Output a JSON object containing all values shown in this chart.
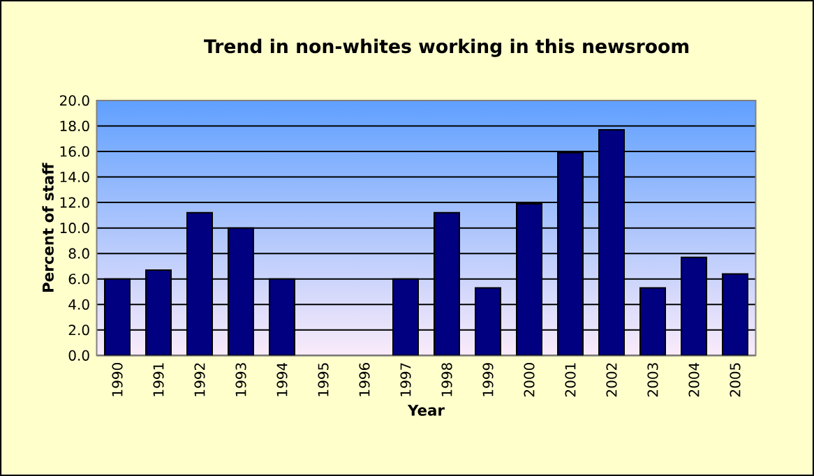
{
  "chart_data": {
    "type": "bar",
    "title": "Trend in non-whites working in this newsroom",
    "xlabel": "Year",
    "ylabel": "Percent of staff",
    "categories": [
      "1990",
      "1991",
      "1992",
      "1993",
      "1994",
      "1995",
      "1996",
      "1997",
      "1998",
      "1999",
      "2000",
      "2001",
      "2002",
      "2003",
      "2004",
      "2005"
    ],
    "values": [
      6.0,
      6.7,
      11.2,
      10.0,
      6.0,
      null,
      null,
      6.0,
      11.2,
      5.3,
      11.9,
      15.9,
      17.7,
      5.3,
      7.7,
      6.4
    ],
    "color": "#000080",
    "ylim": [
      0,
      20
    ],
    "yticks": [
      {
        "value": 0,
        "label": "0.0"
      },
      {
        "value": 2,
        "label": "2.0"
      },
      {
        "value": 4,
        "label": "4.0"
      },
      {
        "value": 6,
        "label": "6.0"
      },
      {
        "value": 8,
        "label": "8.0"
      },
      {
        "value": 10,
        "label": "10.0"
      },
      {
        "value": 12,
        "label": "12.0"
      },
      {
        "value": 14,
        "label": "14.0"
      },
      {
        "value": 16,
        "label": "16.0"
      },
      {
        "value": 18,
        "label": "18.0"
      },
      {
        "value": 20,
        "label": "20.0"
      }
    ],
    "grid": "y"
  }
}
